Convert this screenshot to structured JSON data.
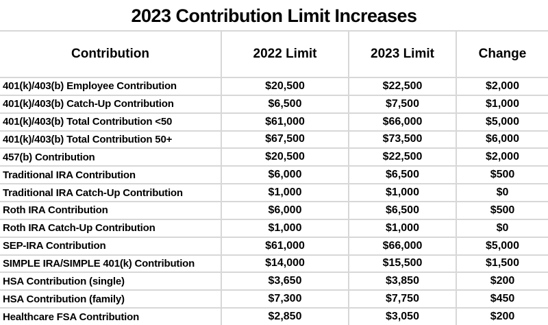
{
  "title": "2023 Contribution Limit Increases",
  "table": {
    "columns": [
      "Contribution",
      "2022 Limit",
      "2023 Limit",
      "Change"
    ],
    "rows": [
      [
        "401(k)/403(b) Employee Contribution",
        "$20,500",
        "$22,500",
        "$2,000"
      ],
      [
        "401(k)/403(b) Catch-Up Contribution",
        "$6,500",
        "$7,500",
        "$1,000"
      ],
      [
        "401(k)/403(b) Total Contribution <50",
        "$61,000",
        "$66,000",
        "$5,000"
      ],
      [
        "401(k)/403(b) Total Contribution 50+",
        "$67,500",
        "$73,500",
        "$6,000"
      ],
      [
        "457(b) Contribution",
        "$20,500",
        "$22,500",
        "$2,000"
      ],
      [
        "Traditional IRA Contribution",
        "$6,000",
        "$6,500",
        "$500"
      ],
      [
        "Traditional IRA Catch-Up Contribution",
        "$1,000",
        "$1,000",
        "$0"
      ],
      [
        "Roth IRA Contribution",
        "$6,000",
        "$6,500",
        "$500"
      ],
      [
        "Roth IRA Catch-Up Contribution",
        "$1,000",
        "$1,000",
        "$0"
      ],
      [
        "SEP-IRA Contribution",
        "$61,000",
        "$66,000",
        "$5,000"
      ],
      [
        "SIMPLE IRA/SIMPLE 401(k) Contribution",
        "$14,000",
        "$15,500",
        "$1,500"
      ],
      [
        "HSA Contribution (single)",
        "$3,650",
        "$3,850",
        "$200"
      ],
      [
        "HSA Contribution (family)",
        "$7,300",
        "$7,750",
        "$450"
      ],
      [
        "Healthcare FSA Contribution",
        "$2,850",
        "$3,050",
        "$200"
      ]
    ]
  },
  "colors": {
    "background": "#ffffff",
    "gridline": "#d7d7d7",
    "text": "#000000"
  },
  "chart_data": {
    "type": "table",
    "title": "2023 Contribution Limit Increases",
    "columns": [
      "Contribution",
      "2022 Limit",
      "2023 Limit",
      "Change"
    ],
    "rows": [
      {
        "contribution": "401(k)/403(b) Employee Contribution",
        "limit_2022": 20500,
        "limit_2023": 22500,
        "change": 2000
      },
      {
        "contribution": "401(k)/403(b) Catch-Up Contribution",
        "limit_2022": 6500,
        "limit_2023": 7500,
        "change": 1000
      },
      {
        "contribution": "401(k)/403(b) Total Contribution <50",
        "limit_2022": 61000,
        "limit_2023": 66000,
        "change": 5000
      },
      {
        "contribution": "401(k)/403(b) Total Contribution 50+",
        "limit_2022": 67500,
        "limit_2023": 73500,
        "change": 6000
      },
      {
        "contribution": "457(b) Contribution",
        "limit_2022": 20500,
        "limit_2023": 22500,
        "change": 2000
      },
      {
        "contribution": "Traditional IRA Contribution",
        "limit_2022": 6000,
        "limit_2023": 6500,
        "change": 500
      },
      {
        "contribution": "Traditional IRA Catch-Up Contribution",
        "limit_2022": 1000,
        "limit_2023": 1000,
        "change": 0
      },
      {
        "contribution": "Roth IRA Contribution",
        "limit_2022": 6000,
        "limit_2023": 6500,
        "change": 500
      },
      {
        "contribution": "Roth IRA Catch-Up Contribution",
        "limit_2022": 1000,
        "limit_2023": 1000,
        "change": 0
      },
      {
        "contribution": "SEP-IRA Contribution",
        "limit_2022": 61000,
        "limit_2023": 66000,
        "change": 5000
      },
      {
        "contribution": "SIMPLE IRA/SIMPLE 401(k) Contribution",
        "limit_2022": 14000,
        "limit_2023": 15500,
        "change": 1500
      },
      {
        "contribution": "HSA Contribution (single)",
        "limit_2022": 3650,
        "limit_2023": 3850,
        "change": 200
      },
      {
        "contribution": "HSA Contribution (family)",
        "limit_2022": 7300,
        "limit_2023": 7750,
        "change": 450
      },
      {
        "contribution": "Healthcare FSA Contribution",
        "limit_2022": 2850,
        "limit_2023": 3050,
        "change": 200
      }
    ]
  }
}
